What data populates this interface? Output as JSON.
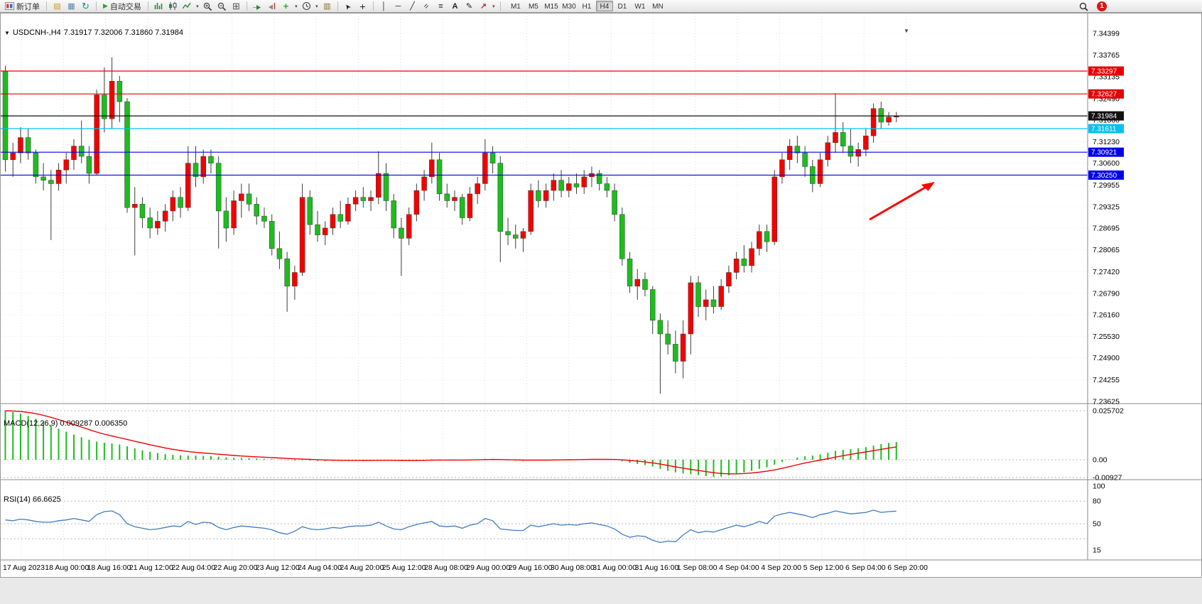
{
  "toolbar": {
    "new_order": "新订单",
    "auto_trading": "自动交易",
    "text_tool": "A",
    "timeframes": [
      "M1",
      "M5",
      "M15",
      "M30",
      "H1",
      "H4",
      "D1",
      "W1",
      "MN"
    ],
    "active_timeframe": "H4",
    "notification_count": "1"
  },
  "header": {
    "symbol": "USDCNH-,H4",
    "ohlc": "7.31917 7.32006 7.31860 7.31984"
  },
  "macd_panel": {
    "title": "MACD(12,26,9) 0.009287 0.006350"
  },
  "rsi_panel": {
    "title": "RSI(14) 66.6625"
  },
  "chart_data": [
    {
      "type": "candlestick",
      "title": "USDCNH-,H4",
      "timeframe": "H4",
      "ylim": [
        7.2356,
        7.3488
      ],
      "up_color": "#f40000",
      "down_color": "#1dbd1d",
      "wick_color": "#3c3c3c",
      "y_ticks": [
        7.34399,
        7.33765,
        7.33135,
        7.3249,
        7.3186,
        7.3123,
        7.306,
        7.29955,
        7.29325,
        7.28695,
        7.28065,
        7.2742,
        7.2679,
        7.2616,
        7.2553,
        7.249,
        7.24255,
        7.23625
      ],
      "hlines": [
        {
          "price": 7.33297,
          "color": "#e60000",
          "label": "7.33297"
        },
        {
          "price": 7.32627,
          "color": "#e60000",
          "label": "7.32627"
        },
        {
          "price": 7.31984,
          "color": "#111111",
          "label": "7.31984"
        },
        {
          "price": 7.31611,
          "color": "#00c2ee",
          "label": "7.31611"
        },
        {
          "price": 7.30921,
          "color": "#0000ee",
          "label": "7.30921"
        },
        {
          "price": 7.3025,
          "color": "#0000ee",
          "label": "7.30250"
        }
      ],
      "x_labels": [
        "17 Aug 2023",
        "18 Aug 00:00",
        "18 Aug 16:00",
        "21 Aug 12:00",
        "22 Aug 04:00",
        "22 Aug 20:00",
        "23 Aug 12:00",
        "24 Aug 04:00",
        "24 Aug 20:00",
        "25 Aug 12:00",
        "28 Aug 08:00",
        "29 Aug 00:00",
        "29 Aug 16:00",
        "30 Aug 08:00",
        "31 Aug 00:00",
        "31 Aug 16:00",
        "1 Sep 08:00",
        "4 Sep 04:00",
        "4 Sep 20:00",
        "5 Sep 12:00",
        "6 Sep 04:00",
        "6 Sep 20:00"
      ],
      "candles": [
        [
          7.333,
          7.3345,
          7.3035,
          7.307
        ],
        [
          7.307,
          7.312,
          7.302,
          7.309
        ],
        [
          7.309,
          7.3165,
          7.306,
          7.3135
        ],
        [
          7.3135,
          7.316,
          7.307,
          7.309
        ],
        [
          7.309,
          7.31,
          7.3,
          7.302
        ],
        [
          7.302,
          7.306,
          7.298,
          7.301
        ],
        [
          7.301,
          7.304,
          7.2835,
          7.3
        ],
        [
          7.3,
          7.306,
          7.298,
          7.304
        ],
        [
          7.304,
          7.309,
          7.3,
          7.307
        ],
        [
          7.307,
          7.313,
          7.304,
          7.311
        ],
        [
          7.311,
          7.3185,
          7.306,
          7.308
        ],
        [
          7.308,
          7.311,
          7.3,
          7.303
        ],
        [
          7.303,
          7.3275,
          7.3025,
          7.326
        ],
        [
          7.326,
          7.334,
          7.315,
          7.319
        ],
        [
          7.319,
          7.337,
          7.316,
          7.33
        ],
        [
          7.33,
          7.3315,
          7.318,
          7.324
        ],
        [
          7.324,
          7.325,
          7.2915,
          7.293
        ],
        [
          7.293,
          7.299,
          7.279,
          7.294
        ],
        [
          7.294,
          7.296,
          7.287,
          7.29
        ],
        [
          7.29,
          7.293,
          7.284,
          7.287
        ],
        [
          7.287,
          7.292,
          7.285,
          7.289
        ],
        [
          7.289,
          7.294,
          7.286,
          7.292
        ],
        [
          7.292,
          7.298,
          7.289,
          7.296
        ],
        [
          7.296,
          7.299,
          7.29,
          7.293
        ],
        [
          7.293,
          7.311,
          7.292,
          7.306
        ],
        [
          7.306,
          7.311,
          7.299,
          7.302
        ],
        [
          7.302,
          7.31,
          7.3,
          7.308
        ],
        [
          7.308,
          7.31,
          7.303,
          7.306
        ],
        [
          7.306,
          7.308,
          7.281,
          7.292
        ],
        [
          7.292,
          7.296,
          7.283,
          7.287
        ],
        [
          7.287,
          7.298,
          7.285,
          7.295
        ],
        [
          7.295,
          7.3,
          7.29,
          7.297
        ],
        [
          7.297,
          7.3,
          7.292,
          7.294
        ],
        [
          7.294,
          7.296,
          7.288,
          7.2905
        ],
        [
          7.2905,
          7.293,
          7.287,
          7.289
        ],
        [
          7.289,
          7.291,
          7.279,
          7.281
        ],
        [
          7.281,
          7.286,
          7.275,
          7.278
        ],
        [
          7.278,
          7.28,
          7.2625,
          7.27
        ],
        [
          7.27,
          7.276,
          7.266,
          7.274
        ],
        [
          7.274,
          7.3,
          7.273,
          7.296
        ],
        [
          7.296,
          7.298,
          7.285,
          7.288
        ],
        [
          7.288,
          7.292,
          7.283,
          7.285
        ],
        [
          7.285,
          7.289,
          7.282,
          7.287
        ],
        [
          7.287,
          7.293,
          7.285,
          7.291
        ],
        [
          7.291,
          7.295,
          7.287,
          7.289
        ],
        [
          7.289,
          7.296,
          7.288,
          7.294
        ],
        [
          7.294,
          7.298,
          7.292,
          7.296
        ],
        [
          7.296,
          7.299,
          7.293,
          7.295
        ],
        [
          7.295,
          7.298,
          7.292,
          7.296
        ],
        [
          7.296,
          7.3095,
          7.294,
          7.303
        ],
        [
          7.303,
          7.306,
          7.292,
          7.295
        ],
        [
          7.295,
          7.297,
          7.284,
          7.287
        ],
        [
          7.287,
          7.29,
          7.273,
          7.284
        ],
        [
          7.284,
          7.293,
          7.282,
          7.291
        ],
        [
          7.291,
          7.3,
          7.289,
          7.298
        ],
        [
          7.298,
          7.304,
          7.295,
          7.302
        ],
        [
          7.302,
          7.312,
          7.3,
          7.307
        ],
        [
          7.307,
          7.309,
          7.295,
          7.297
        ],
        [
          7.297,
          7.3,
          7.293,
          7.295
        ],
        [
          7.295,
          7.298,
          7.292,
          7.296
        ],
        [
          7.296,
          7.297,
          7.288,
          7.29
        ],
        [
          7.29,
          7.299,
          7.289,
          7.297
        ],
        [
          7.297,
          7.302,
          7.294,
          7.3
        ],
        [
          7.3,
          7.313,
          7.298,
          7.309
        ],
        [
          7.309,
          7.311,
          7.303,
          7.306
        ],
        [
          7.306,
          7.308,
          7.277,
          7.286
        ],
        [
          7.286,
          7.29,
          7.282,
          7.285
        ],
        [
          7.285,
          7.288,
          7.281,
          7.284
        ],
        [
          7.284,
          7.287,
          7.28,
          7.286
        ],
        [
          7.286,
          7.3,
          7.285,
          7.298
        ],
        [
          7.298,
          7.301,
          7.293,
          7.295
        ],
        [
          7.295,
          7.3,
          7.293,
          7.298
        ],
        [
          7.298,
          7.303,
          7.295,
          7.301
        ],
        [
          7.301,
          7.304,
          7.296,
          7.298
        ],
        [
          7.298,
          7.302,
          7.296,
          7.3
        ],
        [
          7.3,
          7.303,
          7.297,
          7.299
        ],
        [
          7.299,
          7.304,
          7.297,
          7.302
        ],
        [
          7.302,
          7.305,
          7.299,
          7.303
        ],
        [
          7.303,
          7.304,
          7.298,
          7.3
        ],
        [
          7.3,
          7.302,
          7.296,
          7.298
        ],
        [
          7.298,
          7.3,
          7.289,
          7.291
        ],
        [
          7.291,
          7.293,
          7.276,
          7.278
        ],
        [
          7.278,
          7.28,
          7.268,
          7.27
        ],
        [
          7.27,
          7.275,
          7.266,
          7.272
        ],
        [
          7.272,
          7.274,
          7.267,
          7.269
        ],
        [
          7.269,
          7.27,
          7.256,
          7.26
        ],
        [
          7.26,
          7.262,
          7.2385,
          7.256
        ],
        [
          7.256,
          7.26,
          7.25,
          7.253
        ],
        [
          7.253,
          7.257,
          7.2445,
          7.248
        ],
        [
          7.248,
          7.26,
          7.243,
          7.256
        ],
        [
          7.256,
          7.273,
          7.25,
          7.271
        ],
        [
          7.271,
          7.273,
          7.261,
          7.264
        ],
        [
          7.264,
          7.269,
          7.26,
          7.266
        ],
        [
          7.266,
          7.27,
          7.262,
          7.264
        ],
        [
          7.264,
          7.272,
          7.263,
          7.27
        ],
        [
          7.27,
          7.276,
          7.268,
          7.274
        ],
        [
          7.274,
          7.28,
          7.272,
          7.278
        ],
        [
          7.278,
          7.282,
          7.274,
          7.276
        ],
        [
          7.276,
          7.283,
          7.274,
          7.281
        ],
        [
          7.281,
          7.288,
          7.279,
          7.286
        ],
        [
          7.286,
          7.288,
          7.28,
          7.283
        ],
        [
          7.283,
          7.304,
          7.282,
          7.302
        ],
        [
          7.302,
          7.309,
          7.3,
          7.307
        ],
        [
          7.307,
          7.313,
          7.304,
          7.311
        ],
        [
          7.311,
          7.314,
          7.306,
          7.309
        ],
        [
          7.309,
          7.311,
          7.302,
          7.305
        ],
        [
          7.305,
          7.307,
          7.2975,
          7.3
        ],
        [
          7.3,
          7.309,
          7.299,
          7.307
        ],
        [
          7.307,
          7.314,
          7.305,
          7.312
        ],
        [
          7.312,
          7.3265,
          7.309,
          7.315
        ],
        [
          7.315,
          7.318,
          7.309,
          7.311
        ],
        [
          7.311,
          7.316,
          7.306,
          7.308
        ],
        [
          7.308,
          7.312,
          7.305,
          7.31
        ],
        [
          7.31,
          7.316,
          7.308,
          7.314
        ],
        [
          7.314,
          7.3235,
          7.312,
          7.322
        ],
        [
          7.322,
          7.324,
          7.316,
          7.318
        ],
        [
          7.318,
          7.321,
          7.317,
          7.3195
        ],
        [
          7.3195,
          7.321,
          7.318,
          7.31984
        ]
      ]
    },
    {
      "type": "macd_histogram",
      "label": "MACD(12,26,9)",
      "main_value": 0.009287,
      "signal_value": 0.00635,
      "signal_period": 9,
      "histogram_color": "#1dbd1d",
      "signal_color": "#f40000",
      "y_ticks": [
        {
          "value": 0.025702,
          "label": "0.025702"
        },
        {
          "value": 0,
          "label": "0.00"
        },
        {
          "value": -0.00927,
          "label": "-0.00927"
        }
      ],
      "values": [
        0.0257,
        0.025,
        0.0242,
        0.023,
        0.0215,
        0.0198,
        0.018,
        0.0163,
        0.0147,
        0.0132,
        0.0118,
        0.0105,
        0.0095,
        0.0089,
        0.0085,
        0.008,
        0.0071,
        0.006,
        0.005,
        0.0042,
        0.0035,
        0.003,
        0.0026,
        0.0023,
        0.0022,
        0.0022,
        0.0021,
        0.002,
        0.0016,
        0.0012,
        0.001,
        0.0009,
        0.0008,
        0.0007,
        0.0005,
        0.0003,
        0.0001,
        -0.0002,
        -0.0004,
        -0.0003,
        -0.0004,
        -0.0006,
        -0.0007,
        -0.0006,
        -0.0006,
        -0.0005,
        -0.0004,
        -0.0004,
        -0.0003,
        -0.0001,
        -0.0002,
        -0.0004,
        -0.0006,
        -0.0005,
        -0.0003,
        -0.0001,
        0.0002,
        0.0001,
        -0.0001,
        -0.0001,
        -0.0002,
        0.0,
        0.0002,
        0.0005,
        0.0005,
        0.0,
        -0.0003,
        -0.0005,
        -0.0006,
        -0.0003,
        -0.0002,
        -0.0001,
        0.0001,
        0.0002,
        0.0002,
        0.0003,
        0.0004,
        0.0004,
        0.0003,
        0.0002,
        -0.0001,
        -0.0008,
        -0.0016,
        -0.0022,
        -0.0028,
        -0.0036,
        -0.0048,
        -0.0058,
        -0.0066,
        -0.0072,
        -0.0076,
        -0.008,
        -0.0086,
        -0.009,
        -0.0088,
        -0.0082,
        -0.0074,
        -0.0066,
        -0.0058,
        -0.0048,
        -0.004,
        -0.0026,
        -0.0012,
        0.0002,
        0.0012,
        0.0018,
        0.0022,
        0.0028,
        0.0036,
        0.0046,
        0.0052,
        0.0056,
        0.006,
        0.0066,
        0.0074,
        0.0082,
        0.0088,
        0.009287
      ]
    },
    {
      "type": "rsi_line",
      "label": "RSI(14)",
      "value": 66.6625,
      "line_color": "#3f7cc4",
      "levels": [
        80,
        50,
        30
      ],
      "y_ticks": [
        {
          "value": 100,
          "label": "100"
        },
        {
          "value": 80,
          "label": "80"
        },
        {
          "value": 50,
          "label": "50"
        },
        {
          "value": 15,
          "label": "15"
        }
      ],
      "values": [
        55,
        54,
        56,
        55,
        53,
        52,
        52,
        54,
        55,
        57,
        55,
        53,
        62,
        66,
        67,
        62,
        50,
        46,
        44,
        42,
        43,
        45,
        47,
        46,
        53,
        49,
        52,
        51,
        45,
        42,
        45,
        47,
        46,
        45,
        44,
        42,
        38,
        36,
        40,
        46,
        43,
        42,
        43,
        45,
        44,
        46,
        47,
        47,
        48,
        52,
        47,
        43,
        42,
        46,
        49,
        51,
        53,
        47,
        46,
        47,
        44,
        48,
        50,
        57,
        54,
        43,
        42,
        41,
        41,
        48,
        46,
        48,
        50,
        48,
        49,
        48,
        50,
        51,
        49,
        47,
        43,
        36,
        32,
        34,
        33,
        28,
        25,
        27,
        26,
        35,
        42,
        38,
        40,
        39,
        42,
        45,
        48,
        46,
        49,
        53,
        50,
        60,
        63,
        65,
        63,
        61,
        58,
        62,
        64,
        67,
        65,
        63,
        64,
        65,
        68,
        65,
        66,
        66.6625
      ]
    }
  ]
}
